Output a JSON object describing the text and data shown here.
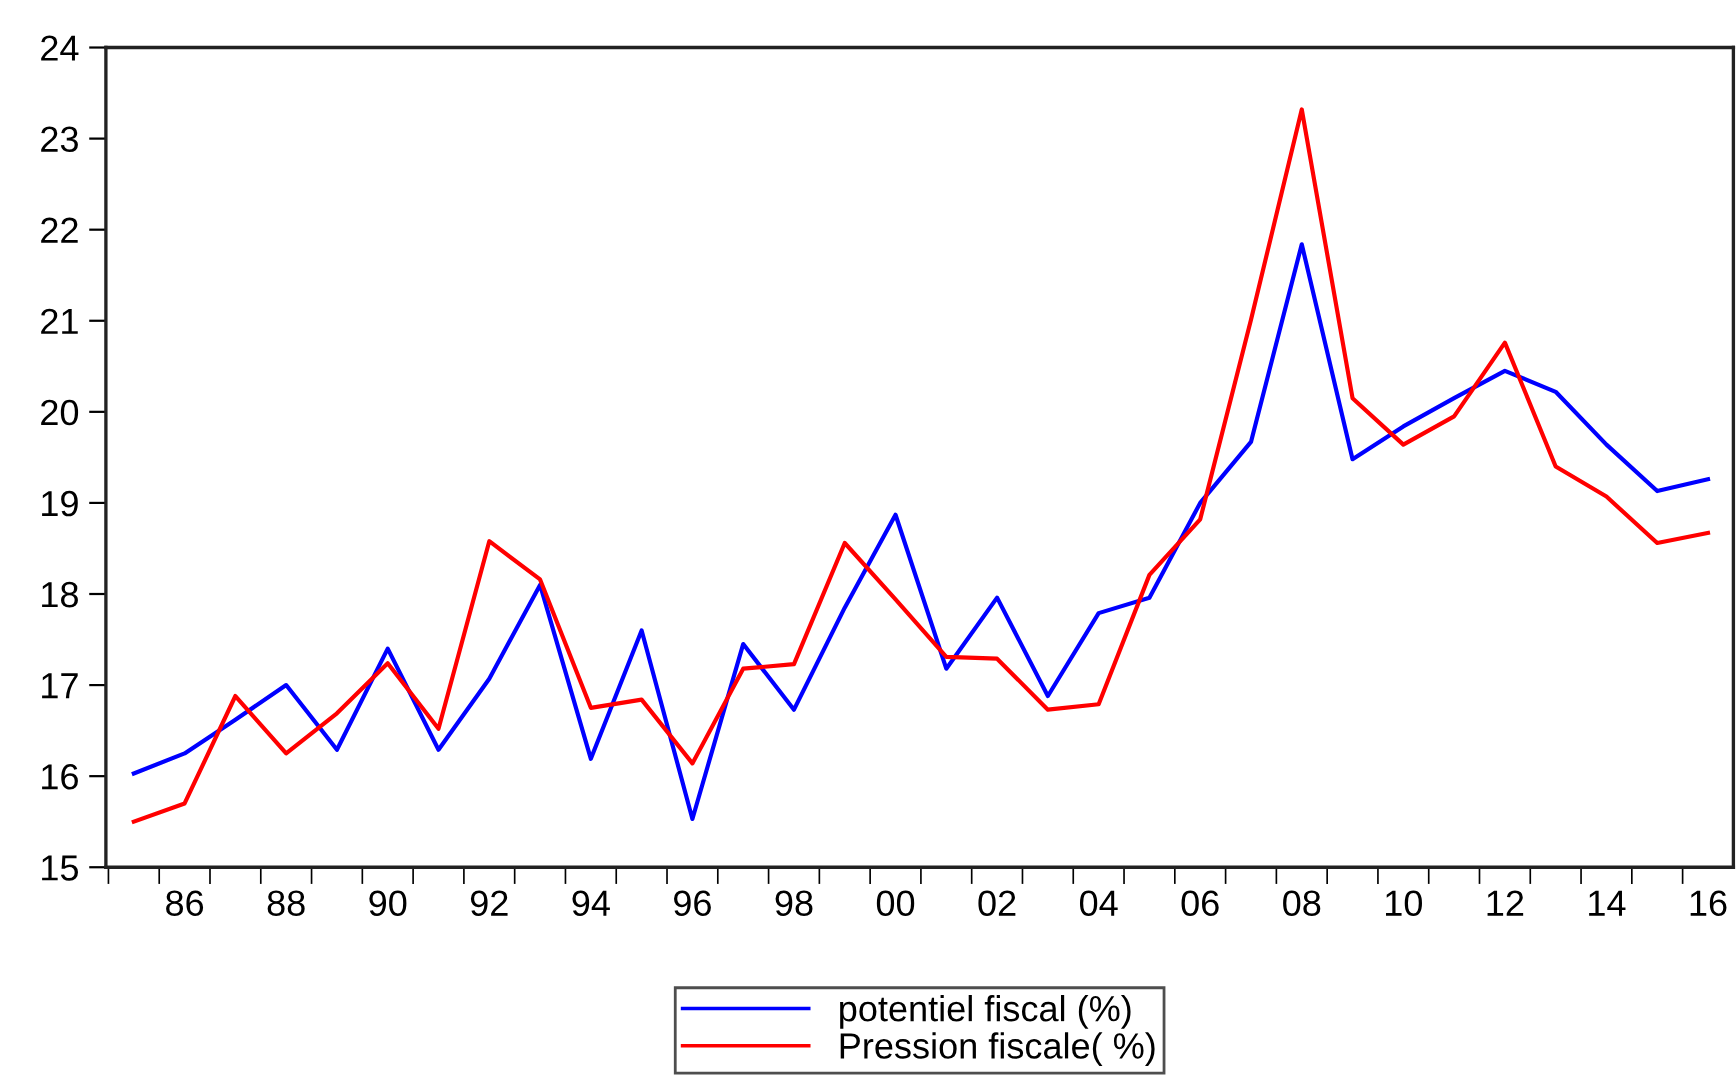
{
  "chart_data": {
    "type": "line",
    "categories": [
      null,
      "86",
      null,
      "88",
      null,
      "90",
      null,
      "92",
      null,
      "94",
      null,
      "96",
      null,
      "98",
      null,
      "00",
      null,
      "02",
      null,
      "04",
      null,
      "06",
      null,
      "08",
      null,
      "10",
      null,
      "12",
      null,
      "14",
      null,
      "16"
    ],
    "series": [
      {
        "name": "potentiel fiscal (%)",
        "color": "#0000ff",
        "values": [
          16.03,
          16.25,
          16.62,
          17.0,
          16.29,
          17.4,
          16.29,
          17.07,
          18.1,
          16.19,
          17.6,
          15.53,
          17.45,
          16.73,
          17.85,
          18.87,
          17.18,
          17.96,
          16.88,
          17.79,
          17.96,
          19.0,
          19.67,
          21.84,
          19.48,
          19.84,
          20.15,
          20.45,
          20.22,
          19.64,
          19.13,
          19.26
        ]
      },
      {
        "name": "Pression fiscale( %)",
        "color": "#ff0000",
        "values": [
          15.5,
          15.7,
          16.88,
          16.25,
          16.69,
          17.24,
          16.52,
          18.58,
          18.16,
          16.75,
          16.84,
          16.14,
          17.18,
          17.23,
          18.56,
          17.94,
          17.31,
          17.29,
          16.73,
          16.79,
          18.21,
          18.82,
          21.01,
          23.32,
          20.15,
          19.64,
          19.95,
          20.76,
          19.4,
          19.07,
          18.56,
          18.67
        ]
      }
    ],
    "ylim": [
      15,
      24
    ],
    "yticks": [
      15,
      16,
      17,
      18,
      19,
      20,
      21,
      22,
      23,
      24
    ],
    "grid": false,
    "legend": "bottom",
    "marker": "none",
    "line_style": "solid"
  }
}
